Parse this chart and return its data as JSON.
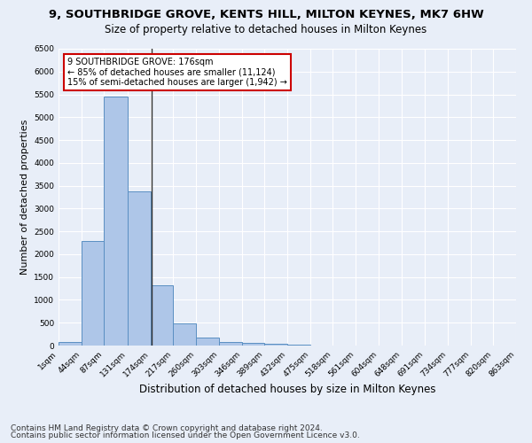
{
  "title1": "9, SOUTHBRIDGE GROVE, KENTS HILL, MILTON KEYNES, MK7 6HW",
  "title2": "Size of property relative to detached houses in Milton Keynes",
  "xlabel": "Distribution of detached houses by size in Milton Keynes",
  "ylabel": "Number of detached properties",
  "footer1": "Contains HM Land Registry data © Crown copyright and database right 2024.",
  "footer2": "Contains public sector information licensed under the Open Government Licence v3.0.",
  "bin_edges": [
    1,
    44,
    87,
    131,
    174,
    217,
    260,
    303,
    346,
    389,
    432,
    475,
    518,
    561,
    604,
    648,
    691,
    734,
    777,
    820,
    863
  ],
  "bar_heights": [
    75,
    2280,
    5450,
    3380,
    1310,
    490,
    165,
    75,
    55,
    30,
    15,
    8,
    5,
    3,
    2,
    2,
    1,
    1,
    1,
    0
  ],
  "bar_color": "#aec6e8",
  "bar_edge_color": "#5a8fc2",
  "property_size": 176,
  "vline_color": "#333333",
  "annotation_line1": "9 SOUTHBRIDGE GROVE: 176sqm",
  "annotation_line2": "← 85% of detached houses are smaller (11,124)",
  "annotation_line3": "15% of semi-detached houses are larger (1,942) →",
  "annotation_box_color": "#ffffff",
  "annotation_border_color": "#cc0000",
  "ylim": [
    0,
    6500
  ],
  "yticks": [
    0,
    500,
    1000,
    1500,
    2000,
    2500,
    3000,
    3500,
    4000,
    4500,
    5000,
    5500,
    6000,
    6500
  ],
  "background_color": "#e8eef8",
  "grid_color": "#ffffff",
  "title1_fontsize": 9.5,
  "title2_fontsize": 8.5,
  "xlabel_fontsize": 8.5,
  "ylabel_fontsize": 8,
  "tick_fontsize": 6.5,
  "annotation_fontsize": 7,
  "footer_fontsize": 6.5
}
